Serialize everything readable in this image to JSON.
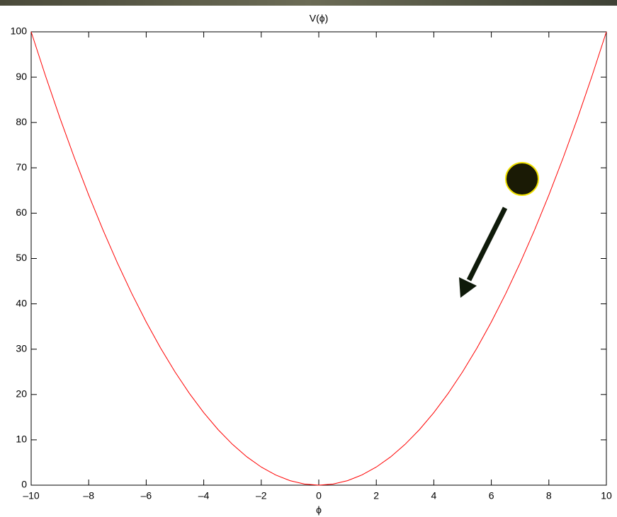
{
  "chart_data": {
    "type": "line",
    "title": "V(ϕ)",
    "x_label": "ϕ",
    "x": [
      -10,
      -9.5,
      -9,
      -8.5,
      -8,
      -7.5,
      -7,
      -6.5,
      -6,
      -5.5,
      -5,
      -4.5,
      -4,
      -3.5,
      -3,
      -2.5,
      -2,
      -1.5,
      -1,
      -0.5,
      0,
      0.5,
      1,
      1.5,
      2,
      2.5,
      3,
      3.5,
      4,
      4.5,
      5,
      5.5,
      6,
      6.5,
      7,
      7.5,
      8,
      8.5,
      9,
      9.5,
      10
    ],
    "values": [
      100,
      90.25,
      81,
      72.25,
      64,
      56.25,
      49,
      42.25,
      36,
      30.25,
      25,
      20.25,
      16,
      12.25,
      9,
      6.25,
      4,
      2.25,
      1,
      0.25,
      0,
      0.25,
      1,
      2.25,
      4,
      6.25,
      9,
      12.25,
      16,
      20.25,
      25,
      30.25,
      36,
      42.25,
      49,
      56.25,
      64,
      72.25,
      81,
      90.25,
      100
    ],
    "color": "#ff0000",
    "xlim": [
      -10,
      10
    ],
    "xticks": [
      {
        "value": -10,
        "label": "–10"
      },
      {
        "value": -8,
        "label": "–8"
      },
      {
        "value": -6,
        "label": "–6"
      },
      {
        "value": -4,
        "label": "–4"
      },
      {
        "value": -2,
        "label": "–2"
      },
      0,
      2,
      4,
      6,
      8,
      10
    ],
    "ylim": [
      0,
      100
    ],
    "yticks": [
      0,
      10,
      20,
      30,
      40,
      50,
      60,
      70,
      80,
      90,
      100
    ],
    "grid": false
  }
}
